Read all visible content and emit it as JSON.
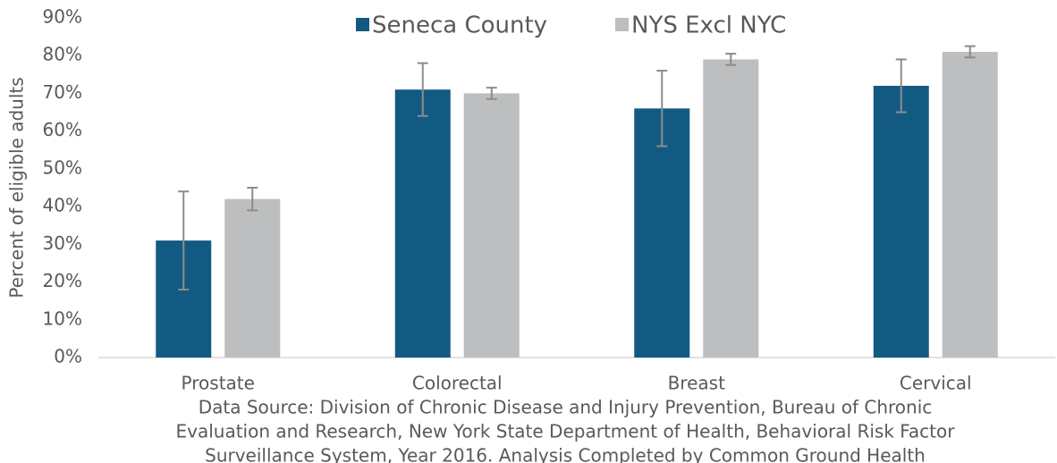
{
  "chart_data": {
    "type": "bar",
    "ylabel": "Percent of eligible adults",
    "categories": [
      "Prostate",
      "Colorectal",
      "Breast",
      "Cervical"
    ],
    "series": [
      {
        "name": "Seneca County",
        "color": "#135a83",
        "values": [
          31,
          71,
          66,
          72
        ],
        "errors": [
          13,
          7,
          10,
          7
        ]
      },
      {
        "name": "NYS Excl NYC",
        "color": "#bdbec0",
        "values": [
          42,
          70,
          79,
          81
        ],
        "errors": [
          3,
          1.5,
          1.5,
          1.5
        ]
      }
    ],
    "error_color": "#8c8c8c",
    "ylim": [
      0,
      90
    ],
    "yticks": [
      {
        "value": 0,
        "label": "0%"
      },
      {
        "value": 10,
        "label": "10%"
      },
      {
        "value": 20,
        "label": "20%"
      },
      {
        "value": 30,
        "label": "30%"
      },
      {
        "value": 40,
        "label": "40%"
      },
      {
        "value": 50,
        "label": "50%"
      },
      {
        "value": 60,
        "label": "60%"
      },
      {
        "value": 70,
        "label": "70%"
      },
      {
        "value": 80,
        "label": "80%"
      },
      {
        "value": 90,
        "label": "90%"
      }
    ],
    "grid": false,
    "legend": "top",
    "source": [
      "Data Source: Division of Chronic Disease and Injury Prevention, Bureau of Chronic",
      "Evaluation and Research, New York State Department of Health, Behavioral Risk Factor",
      "Surveillance System, Year 2016. Analysis Completed by Common Ground Health"
    ]
  }
}
